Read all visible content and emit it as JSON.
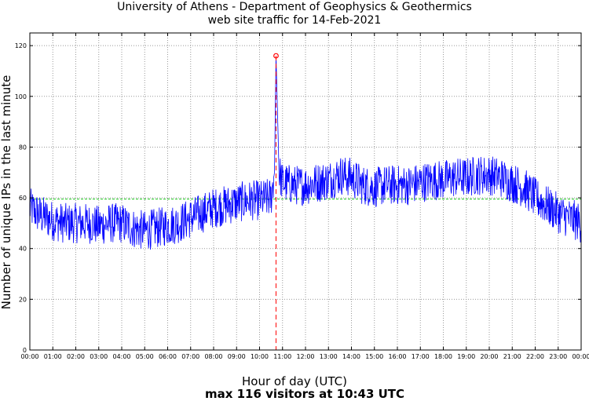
{
  "chart_data": {
    "type": "line",
    "title": "University of Athens - Department of Geophysics & Geothermics",
    "subtitle": "web site traffic for 14-Feb-2021",
    "xlabel": "Hour of day (UTC)",
    "ylabel": "Number of unique IPs in the last minute",
    "footer": "max 116 visitors at 10:43 UTC",
    "xlim_hours": [
      0,
      24
    ],
    "ylim": [
      0,
      125
    ],
    "grid": true,
    "x_tick_labels": [
      "00:00",
      "01:00",
      "02:00",
      "03:00",
      "04:00",
      "05:00",
      "06:00",
      "07:00",
      "08:00",
      "09:00",
      "10:00",
      "11:00",
      "12:00",
      "13:00",
      "14:00",
      "15:00",
      "16:00",
      "17:00",
      "18:00",
      "19:00",
      "20:00",
      "21:00",
      "22:00",
      "23:00",
      "00:00"
    ],
    "y_ticks": [
      0,
      20,
      40,
      60,
      80,
      100,
      120
    ],
    "mean_line": {
      "value": 59.5,
      "color": "#33cc33"
    },
    "max_marker": {
      "time": "10:43",
      "hour": 10.717,
      "value": 116,
      "color": "#ff0000"
    },
    "series": [
      {
        "color": "#0000ff",
        "x_hours": [
          0,
          0.5,
          1,
          1.5,
          2,
          2.5,
          3,
          3.5,
          4,
          4.5,
          5,
          5.5,
          6,
          6.5,
          7,
          7.5,
          8,
          8.5,
          9,
          9.5,
          10,
          10.5,
          10.65,
          10.717,
          10.85,
          11,
          11.5,
          12,
          12.5,
          13,
          13.5,
          14,
          14.5,
          15,
          15.5,
          16,
          16.5,
          17,
          17.5,
          18,
          18.5,
          19,
          19.5,
          20,
          20.5,
          21,
          21.5,
          22,
          22.5,
          23,
          23.5,
          24
        ],
        "values": [
          56,
          53,
          51,
          50,
          50,
          50,
          49,
          50,
          50,
          48,
          47,
          48,
          49,
          50,
          52,
          54,
          56,
          57,
          58,
          59,
          59,
          60,
          70,
          116,
          70,
          66,
          65,
          65,
          66,
          67,
          69,
          68,
          65,
          64,
          65,
          65,
          65,
          66,
          67,
          67,
          68,
          68,
          69,
          69,
          68,
          66,
          64,
          60,
          57,
          54,
          52,
          50
        ]
      }
    ]
  }
}
